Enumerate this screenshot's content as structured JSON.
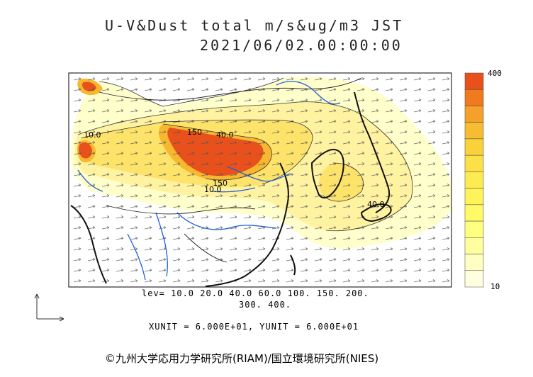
{
  "title": {
    "line1": "U-V&Dust total m/s&ug/m3 JST",
    "line2": "2021/06/02.00:00:00"
  },
  "contour_labels": [
    "10.0",
    "150",
    "40.0",
    "150",
    "10.0",
    "40.0"
  ],
  "legend": {
    "levels_line1": "lev= 10.0 20.0 40.0 60.0 100. 150. 200.",
    "levels_line2": "300. 400.",
    "units": "XUNIT = 6.000E+01, YUNIT = 6.000E+01"
  },
  "colorbar": {
    "top_label": "400",
    "bottom_label": "10",
    "colors": [
      "#e8501c",
      "#f07a1e",
      "#f4a02a",
      "#f7bd32",
      "#f9d23a",
      "#fbe048",
      "#fdeb52",
      "#fff35a",
      "#fffa66",
      "#ffff80",
      "#ffffa0",
      "#ffffc2",
      "#ffffe0"
    ]
  },
  "copyright": "©九州大学応用力学研究所(RIAM)/国立環境研究所(NIES)"
}
